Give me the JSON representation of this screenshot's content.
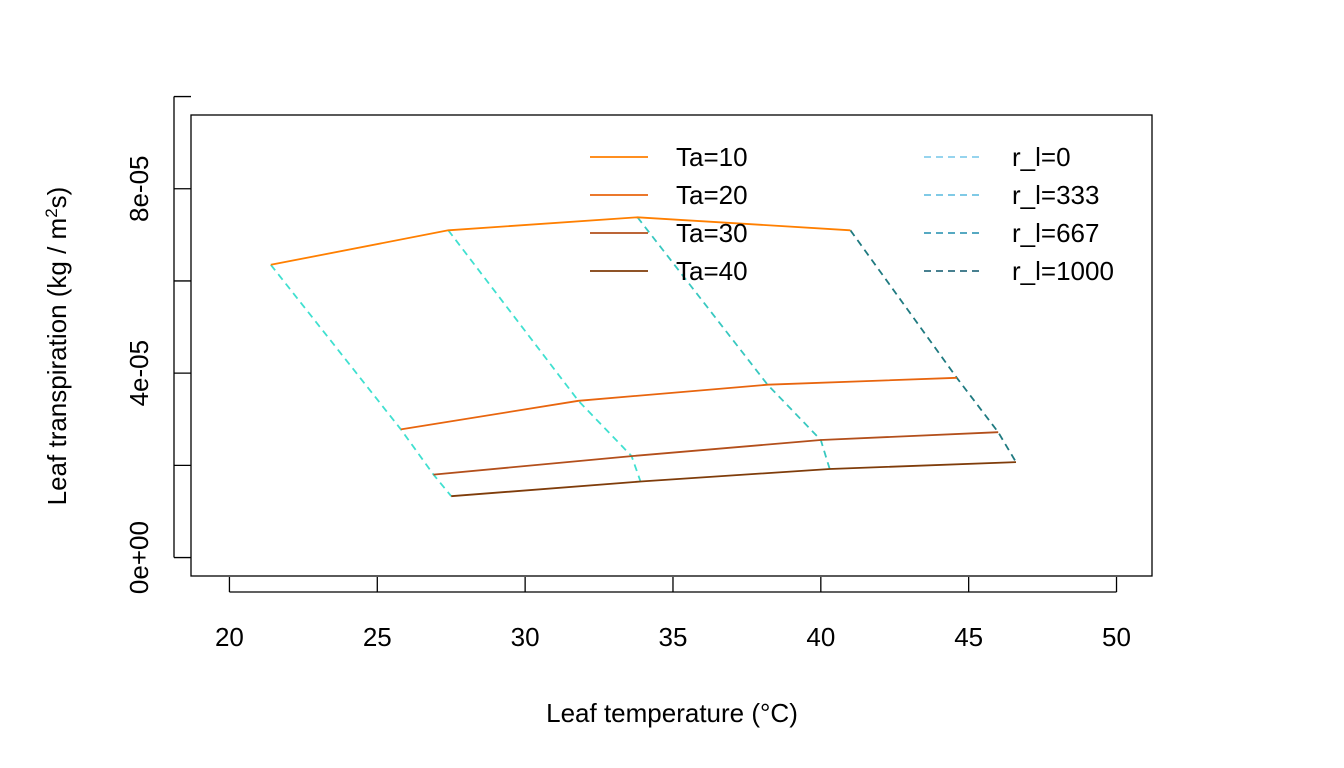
{
  "chart_data": {
    "type": "line",
    "title": "",
    "xlabel": "Leaf temperature (°C)",
    "ylabel": "Leaf transpiration (kg / m²s)",
    "ylabel_parts": {
      "pre": "Leaf transpiration (kg / m",
      "sup": "2",
      "post": "s)"
    },
    "xlim": [
      18.7,
      51.2
    ],
    "ylim": [
      -4e-06,
      9.6e-05
    ],
    "xticks": [
      20,
      25,
      30,
      35,
      40,
      45,
      50
    ],
    "xtick_labels": [
      "20",
      "25",
      "30",
      "35",
      "40",
      "45",
      "50"
    ],
    "yticks": [
      0,
      2e-05,
      4e-05,
      6e-05,
      8e-05,
      0.0001
    ],
    "ytick_labels": [
      "0e+00",
      "",
      "4e-05",
      "",
      "8e-05",
      ""
    ],
    "grid": false,
    "legend_placement": "top-right, two columns",
    "ta_series": [
      {
        "name": "Ta=10",
        "color": "#FF7F00",
        "dash": "solid",
        "points": [
          [
            21.4,
            6.35e-05
          ],
          [
            27.4,
            7.1e-05
          ],
          [
            33.8,
            7.38e-05
          ],
          [
            41.0,
            7.1e-05
          ]
        ]
      },
      {
        "name": "Ta=20",
        "color": "#E8650E",
        "dash": "solid",
        "points": [
          [
            25.8,
            2.78e-05
          ],
          [
            31.8,
            3.4e-05
          ],
          [
            38.2,
            3.75e-05
          ],
          [
            44.6,
            3.9e-05
          ]
        ]
      },
      {
        "name": "Ta=30",
        "color": "#B34F1B",
        "dash": "solid",
        "points": [
          [
            26.9,
            1.8e-05
          ],
          [
            33.6,
            2.2e-05
          ],
          [
            40.0,
            2.55e-05
          ],
          [
            46.0,
            2.72e-05
          ]
        ]
      },
      {
        "name": "Ta=40",
        "color": "#7F3C0A",
        "dash": "solid",
        "points": [
          [
            27.5,
            1.33e-05
          ],
          [
            33.9,
            1.65e-05
          ],
          [
            40.3,
            1.92e-05
          ],
          [
            46.6,
            2.07e-05
          ]
        ]
      }
    ],
    "rl_series": [
      {
        "name": "r_l=0",
        "color": "#40E0D0",
        "legend_color": "#87CEEB",
        "dash": "dashed",
        "points": [
          [
            21.4,
            6.35e-05
          ],
          [
            25.8,
            2.78e-05
          ],
          [
            26.9,
            1.8e-05
          ],
          [
            27.5,
            1.33e-05
          ]
        ]
      },
      {
        "name": "r_l=333",
        "color": "#40E0D0",
        "legend_color": "#6EC3E2",
        "dash": "dashed",
        "points": [
          [
            27.4,
            7.1e-05
          ],
          [
            31.8,
            3.4e-05
          ],
          [
            33.6,
            2.2e-05
          ],
          [
            33.9,
            1.65e-05
          ]
        ]
      },
      {
        "name": "r_l=667",
        "color": "#38C8C0",
        "legend_color": "#3E9DBA",
        "dash": "dashed",
        "points": [
          [
            33.8,
            7.38e-05
          ],
          [
            38.2,
            3.75e-05
          ],
          [
            40.0,
            2.55e-05
          ],
          [
            40.3,
            1.92e-05
          ]
        ]
      },
      {
        "name": "r_l=1000",
        "color": "#1F7A80",
        "legend_color": "#2F6F80",
        "dash": "dashed",
        "points": [
          [
            41.0,
            7.1e-05
          ],
          [
            44.6,
            3.9e-05
          ],
          [
            46.0,
            2.72e-05
          ],
          [
            46.6,
            2.07e-05
          ]
        ]
      }
    ]
  }
}
